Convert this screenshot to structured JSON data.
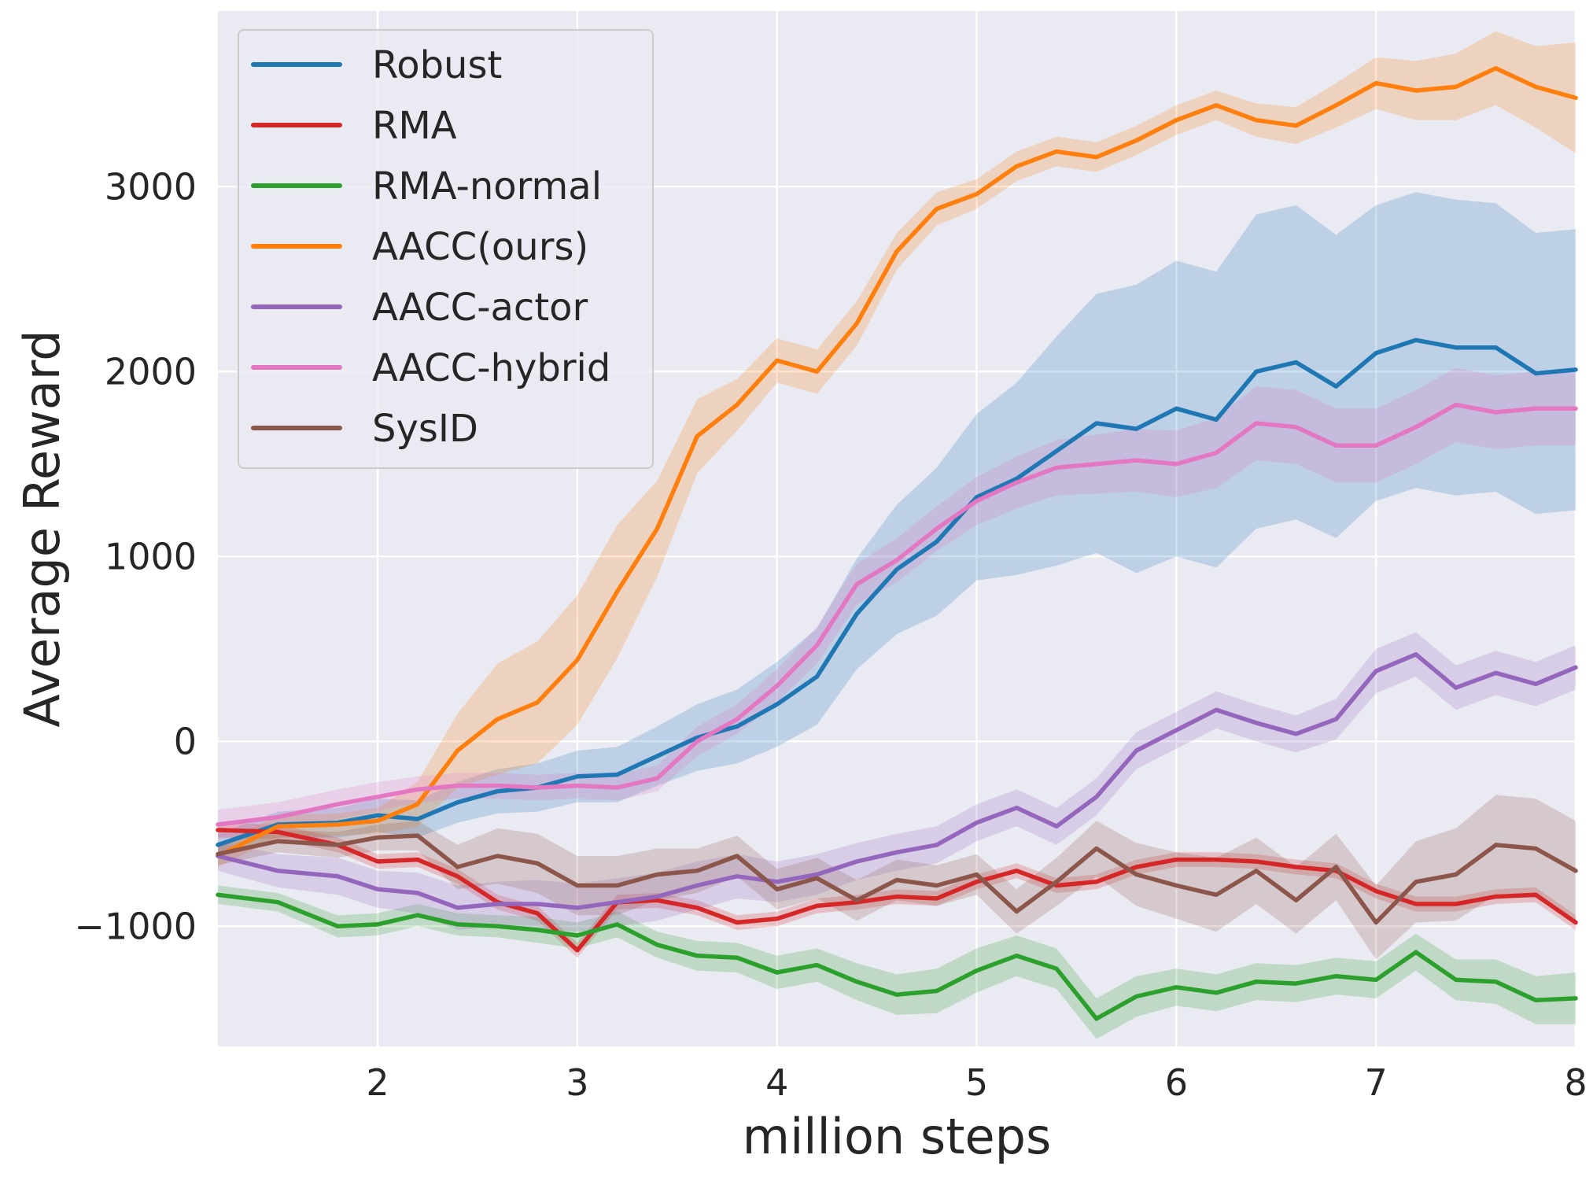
{
  "chart_data": {
    "type": "line",
    "title": "",
    "xlabel": "million steps",
    "ylabel": "Average Reward",
    "xlim": [
      1.2,
      8.0
    ],
    "ylim": [
      -1650,
      3950
    ],
    "xticks": [
      2,
      3,
      4,
      5,
      6,
      7,
      8
    ],
    "xtick_labels": [
      "2",
      "3",
      "4",
      "5",
      "6",
      "7",
      "8"
    ],
    "yticks": [
      -1000,
      0,
      1000,
      2000,
      3000
    ],
    "ytick_labels": [
      "−1000",
      "0",
      "1000",
      "2000",
      "3000"
    ],
    "grid": true,
    "legend_position": "top-left",
    "x": [
      1.2,
      1.5,
      1.8,
      2.0,
      2.2,
      2.4,
      2.6,
      2.8,
      3.0,
      3.2,
      3.4,
      3.6,
      3.8,
      4.0,
      4.2,
      4.4,
      4.6,
      4.8,
      5.0,
      5.2,
      5.4,
      5.6,
      5.8,
      6.0,
      6.2,
      6.4,
      6.6,
      6.8,
      7.0,
      7.2,
      7.4,
      7.6,
      7.8,
      8.0
    ],
    "series": [
      {
        "name": "Robust",
        "color": "#1f77b4",
        "values": [
          -560,
          -450,
          -440,
          -400,
          -420,
          -330,
          -270,
          -250,
          -190,
          -180,
          -80,
          20,
          80,
          200,
          350,
          690,
          930,
          1080,
          1320,
          1420,
          1570,
          1720,
          1690,
          1800,
          1740,
          2000,
          2050,
          1920,
          2100,
          2170,
          2130,
          2130,
          1990,
          2010
        ],
        "band": [
          60,
          70,
          80,
          90,
          100,
          110,
          120,
          130,
          140,
          150,
          160,
          180,
          200,
          230,
          260,
          300,
          350,
          400,
          450,
          520,
          620,
          700,
          780,
          800,
          800,
          850,
          850,
          820,
          800,
          800,
          800,
          780,
          760,
          760
        ]
      },
      {
        "name": "RMA",
        "color": "#d62728",
        "values": [
          -480,
          -490,
          -560,
          -650,
          -640,
          -730,
          -870,
          -930,
          -1130,
          -870,
          -860,
          -900,
          -980,
          -960,
          -890,
          -870,
          -840,
          -850,
          -760,
          -700,
          -780,
          -760,
          -680,
          -640,
          -640,
          -650,
          -680,
          -700,
          -810,
          -880,
          -880,
          -840,
          -830,
          -980
        ],
        "band": [
          40,
          40,
          40,
          40,
          40,
          40,
          40,
          40,
          40,
          40,
          40,
          40,
          40,
          40,
          40,
          40,
          40,
          40,
          40,
          40,
          40,
          40,
          40,
          40,
          40,
          40,
          40,
          40,
          40,
          40,
          40,
          40,
          40,
          40
        ]
      },
      {
        "name": "RMA-normal",
        "color": "#2ca02c",
        "values": [
          -830,
          -870,
          -1000,
          -990,
          -940,
          -990,
          -1000,
          -1020,
          -1050,
          -990,
          -1100,
          -1160,
          -1170,
          -1250,
          -1210,
          -1300,
          -1370,
          -1350,
          -1240,
          -1160,
          -1230,
          -1500,
          -1380,
          -1330,
          -1360,
          -1300,
          -1310,
          -1270,
          -1290,
          -1140,
          -1290,
          -1300,
          -1400,
          -1390
        ],
        "band": [
          50,
          50,
          60,
          60,
          60,
          60,
          60,
          70,
          70,
          70,
          70,
          80,
          80,
          90,
          90,
          100,
          110,
          120,
          120,
          110,
          110,
          110,
          110,
          100,
          100,
          100,
          100,
          100,
          100,
          100,
          110,
          120,
          130,
          140
        ]
      },
      {
        "name": "AACC(ours)",
        "color": "#ff7f0e",
        "values": [
          -620,
          -460,
          -450,
          -430,
          -340,
          -50,
          120,
          210,
          440,
          810,
          1150,
          1650,
          1820,
          2060,
          2000,
          2260,
          2650,
          2880,
          2960,
          3110,
          3190,
          3160,
          3250,
          3360,
          3440,
          3360,
          3330,
          3440,
          3560,
          3520,
          3540,
          3640,
          3540,
          3480
        ],
        "band": [
          60,
          60,
          60,
          70,
          120,
          200,
          300,
          330,
          350,
          360,
          260,
          200,
          140,
          120,
          120,
          120,
          100,
          90,
          80,
          80,
          80,
          80,
          80,
          80,
          80,
          90,
          100,
          120,
          140,
          160,
          180,
          200,
          220,
          300
        ]
      },
      {
        "name": "AACC-actor",
        "color": "#9467bd",
        "values": [
          -620,
          -700,
          -730,
          -800,
          -820,
          -900,
          -880,
          -880,
          -900,
          -870,
          -840,
          -780,
          -730,
          -760,
          -720,
          -650,
          -600,
          -560,
          -440,
          -360,
          -460,
          -300,
          -50,
          60,
          170,
          100,
          40,
          120,
          380,
          470,
          290,
          370,
          310,
          400
        ],
        "band": [
          80,
          90,
          100,
          100,
          110,
          120,
          120,
          130,
          130,
          130,
          130,
          130,
          120,
          110,
          110,
          100,
          100,
          100,
          100,
          100,
          100,
          100,
          100,
          100,
          100,
          100,
          100,
          110,
          120,
          120,
          120,
          120,
          120,
          120
        ]
      },
      {
        "name": "AACC-hybrid",
        "color": "#e377c2",
        "values": [
          -450,
          -410,
          -340,
          -300,
          -260,
          -240,
          -240,
          -250,
          -240,
          -250,
          -200,
          0,
          120,
          300,
          520,
          850,
          980,
          1150,
          1300,
          1400,
          1480,
          1500,
          1520,
          1500,
          1560,
          1720,
          1700,
          1600,
          1600,
          1700,
          1820,
          1780,
          1800,
          1800
        ],
        "band": [
          80,
          80,
          80,
          80,
          70,
          70,
          70,
          70,
          70,
          70,
          70,
          80,
          80,
          90,
          100,
          110,
          120,
          120,
          130,
          140,
          150,
          160,
          170,
          180,
          190,
          200,
          200,
          200,
          200,
          200,
          200,
          200,
          200,
          200
        ]
      },
      {
        "name": "SysID",
        "color": "#8c564b",
        "values": [
          -610,
          -540,
          -560,
          -520,
          -510,
          -680,
          -620,
          -660,
          -780,
          -780,
          -720,
          -700,
          -620,
          -800,
          -740,
          -860,
          -750,
          -780,
          -720,
          -920,
          -760,
          -580,
          -720,
          -780,
          -830,
          -700,
          -860,
          -680,
          -980,
          -760,
          -720,
          -560,
          -580,
          -700
        ],
        "band": [
          60,
          60,
          70,
          70,
          80,
          120,
          150,
          160,
          160,
          160,
          140,
          120,
          110,
          110,
          110,
          110,
          110,
          110,
          110,
          120,
          130,
          150,
          170,
          180,
          200,
          180,
          180,
          180,
          200,
          220,
          250,
          270,
          270,
          270
        ]
      }
    ]
  }
}
